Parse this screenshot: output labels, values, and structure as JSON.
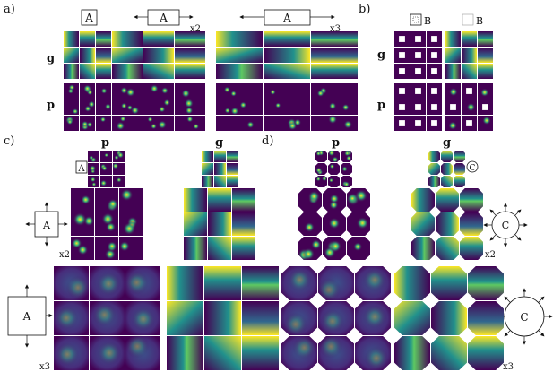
{
  "panels": {
    "a": {
      "tag": "a)",
      "row_labels": [
        "g",
        "p"
      ],
      "box_label": "A",
      "scales": [
        "",
        "x2",
        "x3"
      ]
    },
    "b": {
      "tag": "b)",
      "row_labels": [
        "g",
        "p"
      ],
      "box_label": "B"
    },
    "c": {
      "tag": "c)",
      "col_labels": [
        "p",
        "g"
      ],
      "small_box_label": "A",
      "box_label": "A",
      "scales": [
        "x2",
        "x3"
      ]
    },
    "d": {
      "tag": "d)",
      "col_labels": [
        "p",
        "g"
      ],
      "circle_label": "C",
      "small_circle_label": "C",
      "scales": [
        "x2",
        "x3"
      ]
    }
  },
  "colors": {
    "viridis_dark": "#440154",
    "viridis_mid": "#21918c",
    "viridis_bright": "#fde725"
  }
}
